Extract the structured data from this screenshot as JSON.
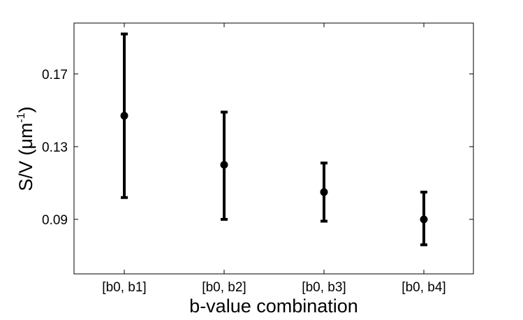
{
  "chart_data": {
    "type": "errorbar",
    "title": "",
    "xlabel": "b-value combination",
    "ylabel": {
      "main": "S/V (",
      "unit": "μm",
      "superscript": "-1",
      "close": ")"
    },
    "categories": [
      "[b0, b1]",
      "[b0, b2]",
      "[b0, b3]",
      "[b0, b4]"
    ],
    "series": [
      {
        "values": [
          0.147,
          0.12,
          0.105,
          0.09
        ],
        "lower": [
          0.102,
          0.09,
          0.089,
          0.076
        ],
        "upper": [
          0.192,
          0.149,
          0.121,
          0.105
        ]
      }
    ],
    "ylim": [
      0.06,
      0.198
    ],
    "yticks": [
      0.09,
      0.13,
      0.17
    ],
    "ytick_labels": [
      "0.09",
      "0.13",
      "0.17"
    ],
    "color": "#000000",
    "grid": false,
    "legend": "none"
  }
}
